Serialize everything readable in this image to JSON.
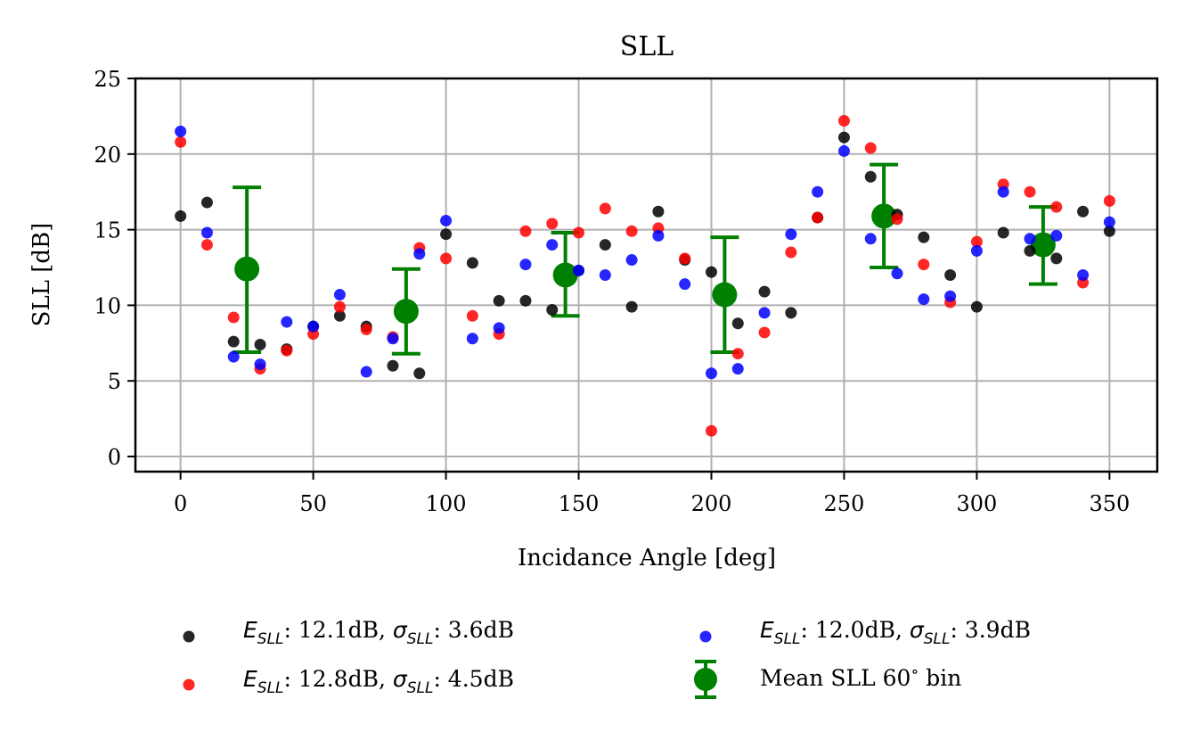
{
  "chart_data": {
    "type": "scatter",
    "title": "SLL",
    "xlabel": "Incidance Angle [deg]",
    "ylabel": "SLL [dB]",
    "xlim": [
      -17,
      368
    ],
    "ylim": [
      -1,
      25
    ],
    "xticks": [
      0,
      50,
      100,
      150,
      200,
      250,
      300,
      350
    ],
    "yticks": [
      0,
      5,
      10,
      15,
      20,
      25
    ],
    "grid": true,
    "legend_position": "bottom",
    "series": [
      {
        "name": "black",
        "color": "#000000",
        "legend_label": {
          "e": "E",
          "sub": "SLL",
          "mean_text": ": 12.1dB, ",
          "sigma": "σ",
          "std_text": ": 3.6dB"
        },
        "x": [
          0,
          10,
          20,
          30,
          40,
          50,
          60,
          70,
          80,
          90,
          100,
          110,
          120,
          130,
          140,
          150,
          160,
          170,
          180,
          190,
          200,
          210,
          220,
          230,
          240,
          250,
          260,
          270,
          280,
          290,
          300,
          310,
          320,
          330,
          340,
          350
        ],
        "y": [
          15.9,
          16.8,
          7.6,
          7.4,
          7.1,
          8.6,
          9.3,
          8.6,
          6.0,
          5.5,
          14.7,
          12.8,
          10.3,
          10.3,
          9.7,
          12.3,
          14.0,
          9.9,
          16.2,
          13.0,
          12.2,
          8.8,
          10.9,
          9.5,
          15.8,
          21.1,
          18.5,
          16.0,
          14.5,
          12.0,
          9.9,
          14.8,
          13.6,
          13.1,
          16.2,
          14.9
        ]
      },
      {
        "name": "red",
        "color": "#ff0000",
        "legend_label": {
          "e": "E",
          "sub": "SLL",
          "mean_text": ": 12.8dB, ",
          "sigma": "σ",
          "std_text": ": 4.5dB"
        },
        "x": [
          0,
          10,
          20,
          30,
          40,
          50,
          60,
          70,
          80,
          90,
          100,
          110,
          120,
          130,
          140,
          150,
          160,
          170,
          180,
          190,
          200,
          210,
          220,
          230,
          240,
          250,
          260,
          270,
          280,
          290,
          300,
          310,
          320,
          330,
          340,
          350
        ],
        "y": [
          20.8,
          14.0,
          9.2,
          5.8,
          7.0,
          8.1,
          9.9,
          8.4,
          7.9,
          13.8,
          13.1,
          9.3,
          8.1,
          14.9,
          15.4,
          14.8,
          16.4,
          14.9,
          15.1,
          13.1,
          1.7,
          6.8,
          8.2,
          13.5,
          15.8,
          22.2,
          20.4,
          15.7,
          12.7,
          10.2,
          14.2,
          18.0,
          17.5,
          16.5,
          11.5,
          16.9
        ]
      },
      {
        "name": "blue",
        "color": "#0000ff",
        "legend_label": {
          "e": "E",
          "sub": "SLL",
          "mean_text": ": 12.0dB, ",
          "sigma": "σ",
          "std_text": ": 3.9dB"
        },
        "x": [
          0,
          10,
          20,
          30,
          40,
          50,
          60,
          70,
          80,
          90,
          100,
          110,
          120,
          130,
          140,
          150,
          160,
          170,
          180,
          190,
          200,
          210,
          220,
          230,
          240,
          250,
          260,
          270,
          280,
          290,
          300,
          310,
          320,
          330,
          340,
          350
        ],
        "y": [
          21.5,
          14.8,
          6.6,
          6.1,
          8.9,
          8.6,
          10.7,
          5.6,
          7.8,
          13.4,
          15.6,
          7.8,
          8.5,
          12.7,
          14.0,
          12.3,
          12.0,
          13.0,
          14.6,
          11.4,
          5.5,
          5.8,
          9.5,
          14.7,
          17.5,
          20.2,
          14.4,
          12.1,
          10.4,
          10.6,
          13.6,
          17.5,
          14.4,
          14.6,
          12.0,
          15.5
        ]
      }
    ],
    "errorbars": {
      "name": "Mean SLL 60° bin",
      "label_main": "Mean SLL 60",
      "label_degree": "∘",
      "label_tail": " bin",
      "color": "#008000",
      "x": [
        25,
        85,
        145,
        205,
        265,
        325
      ],
      "y": [
        12.4,
        9.6,
        12.0,
        10.7,
        15.9,
        14.0
      ],
      "err_low": [
        5.5,
        2.8,
        2.7,
        3.8,
        3.4,
        2.6
      ],
      "err_high": [
        5.4,
        2.8,
        2.8,
        3.8,
        3.4,
        2.5
      ]
    }
  }
}
